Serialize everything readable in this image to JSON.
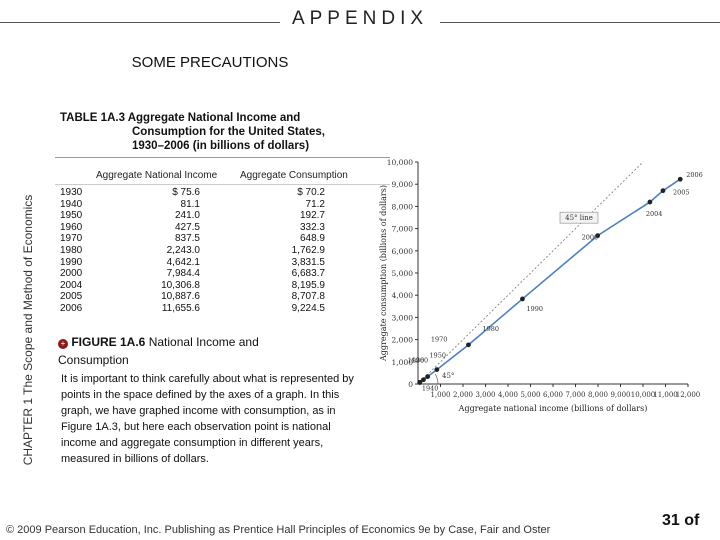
{
  "header": {
    "appendix": "APPENDIX",
    "section": "SOME PRECAUTIONS"
  },
  "side_label": "CHAPTER 1  The Scope and Method of Economics",
  "table": {
    "title_line1": "TABLE 1A.3  Aggregate National Income and",
    "title_line2": "Consumption for the United States,",
    "title_line3": "1930–2006 (in billions of dollars)",
    "col_income": "Aggregate National Income",
    "col_consumption": "Aggregate Consumption",
    "rows": [
      {
        "year": "1930",
        "income": "$   75.6",
        "consumption": "$  70.2"
      },
      {
        "year": "1940",
        "income": "81.1",
        "consumption": "71.2"
      },
      {
        "year": "1950",
        "income": "241.0",
        "consumption": "192.7"
      },
      {
        "year": "1960",
        "income": "427.5",
        "consumption": "332.3"
      },
      {
        "year": "1970",
        "income": "837.5",
        "consumption": "648.9"
      },
      {
        "year": "1980",
        "income": "2,243.0",
        "consumption": "1,762.9"
      },
      {
        "year": "1990",
        "income": "4,642.1",
        "consumption": "3,831.5"
      },
      {
        "year": "2000",
        "income": "7,984.4",
        "consumption": "6,683.7"
      },
      {
        "year": "2004",
        "income": "10,306.8",
        "consumption": "8,195.9"
      },
      {
        "year": "2005",
        "income": "10,887.6",
        "consumption": "8,707.8"
      },
      {
        "year": "2006",
        "income": "11,655.6",
        "consumption": "9,224.5"
      }
    ]
  },
  "figure": {
    "icon": "+",
    "label": "FIGURE 1A.6",
    "title_part1": "National Income and",
    "title_part2": "Consumption"
  },
  "body_text": "It is important to think carefully about what is represented by points in the space defined by the axes of a graph.  In this graph, we have graphed income with consumption, as in Figure 1A.3, but here each observation point is national income and aggregate consumption in different years, measured in billions of dollars.",
  "footer": {
    "copyright": "© 2009 Pearson Education, Inc. Publishing as Prentice Hall  Principles of Economics 9e by Case, Fair and Oster",
    "page": "31 of"
  },
  "chart_data": {
    "type": "scatter",
    "xlabel": "Aggregate national income (billions of dollars)",
    "ylabel": "Aggregate consumption (billions of dollars)",
    "xlim": [
      0,
      12000
    ],
    "ylim": [
      0,
      10000
    ],
    "x_ticks": [
      "1,000",
      "2,000",
      "3,000",
      "4,000",
      "5,000",
      "6,000",
      "7,000",
      "8,000",
      "9,000",
      "10,000",
      "11,000",
      "12,000"
    ],
    "y_ticks": [
      "0",
      "1,000",
      "2,000",
      "3,000",
      "4,000",
      "5,000",
      "6,000",
      "7,000",
      "8,000",
      "9,000",
      "10,000"
    ],
    "reference_line_label": "45°",
    "slope_label": "45° line",
    "points": [
      {
        "label": "1930",
        "x": 75.6,
        "y": 70.2
      },
      {
        "label": "1940",
        "x": 81.1,
        "y": 71.2
      },
      {
        "label": "1950",
        "x": 241.0,
        "y": 192.7
      },
      {
        "label": "1960",
        "x": 427.5,
        "y": 332.3
      },
      {
        "label": "1970",
        "x": 837.5,
        "y": 648.9
      },
      {
        "label": "1980",
        "x": 2243.0,
        "y": 1762.9
      },
      {
        "label": "1990",
        "x": 4642.1,
        "y": 3831.5
      },
      {
        "label": "2000",
        "x": 7984.4,
        "y": 6683.7
      },
      {
        "label": "2004",
        "x": 10306.8,
        "y": 8195.9
      },
      {
        "label": "2005",
        "x": 10887.6,
        "y": 8707.8
      },
      {
        "label": "2006",
        "x": 11655.6,
        "y": 9224.5
      }
    ]
  }
}
